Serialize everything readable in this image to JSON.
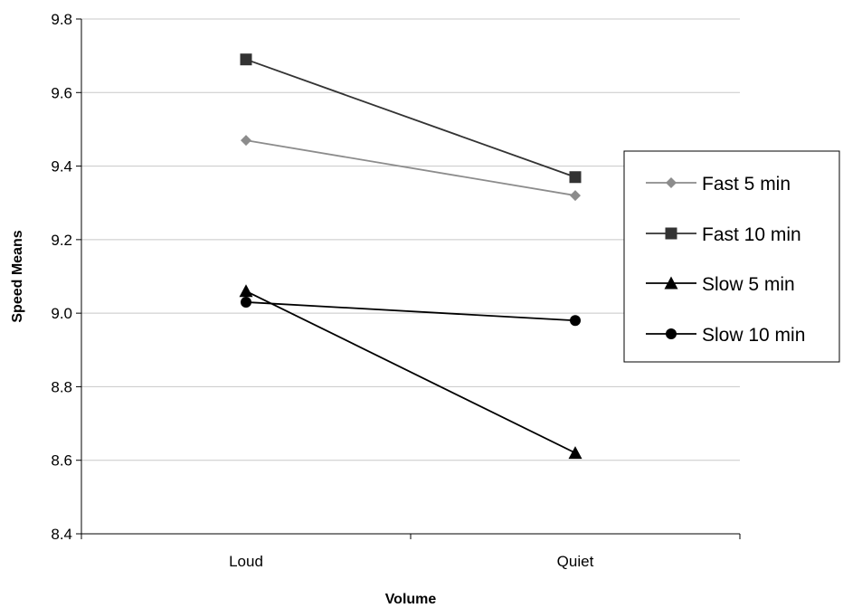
{
  "chart_data": {
    "type": "line",
    "title": "",
    "xlabel": "Volume",
    "ylabel": "Speed Means",
    "categories": [
      "Loud",
      "Quiet"
    ],
    "ylim": [
      8.4,
      9.8
    ],
    "yticks": [
      "8.4",
      "8.6",
      "8.8",
      "9.0",
      "9.2",
      "9.4",
      "9.6",
      "9.8"
    ],
    "grid": true,
    "legend_position": "right",
    "series": [
      {
        "name": "Fast 5 min",
        "values": [
          9.47,
          9.32
        ],
        "marker": "diamond",
        "color": "#8c8c8c"
      },
      {
        "name": "Fast 10 min",
        "values": [
          9.69,
          9.37
        ],
        "marker": "square",
        "color": "#333333"
      },
      {
        "name": "Slow 5 min",
        "values": [
          9.06,
          8.62
        ],
        "marker": "triangle",
        "color": "#000000"
      },
      {
        "name": "Slow 10 min",
        "values": [
          9.03,
          8.98
        ],
        "marker": "circle",
        "color": "#000000"
      }
    ]
  }
}
